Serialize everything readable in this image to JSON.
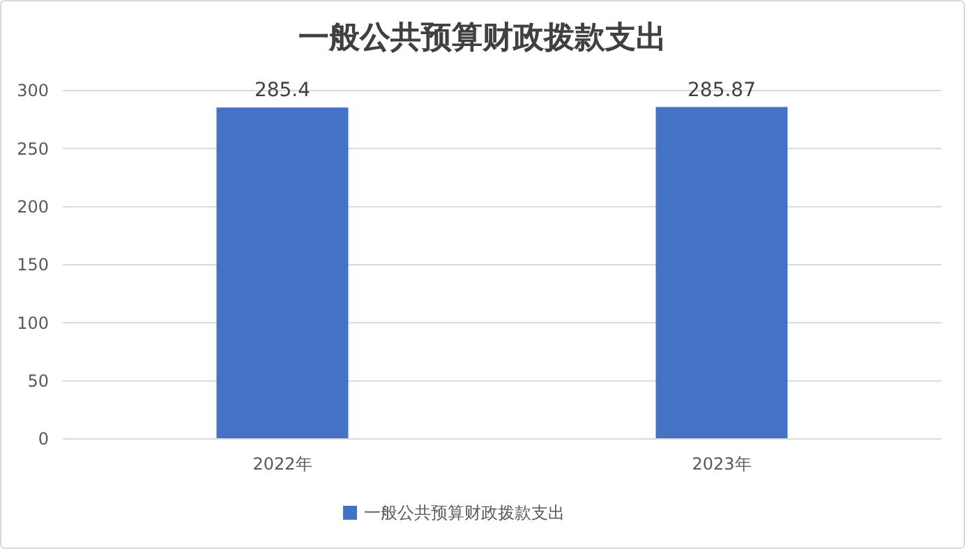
{
  "chart_data": {
    "type": "bar",
    "title": "一般公共预算财政拨款支出",
    "categories": [
      "2022年",
      "2023年"
    ],
    "series": [
      {
        "name": "一般公共预算财政拨款支出",
        "color": "#4472c4",
        "values": [
          285.4,
          285.87
        ]
      }
    ],
    "ylim": [
      0,
      300
    ],
    "yticks": [
      0,
      50,
      100,
      150,
      200,
      250,
      300
    ],
    "grid": "y",
    "legend": "bottom",
    "data_labels": true
  }
}
